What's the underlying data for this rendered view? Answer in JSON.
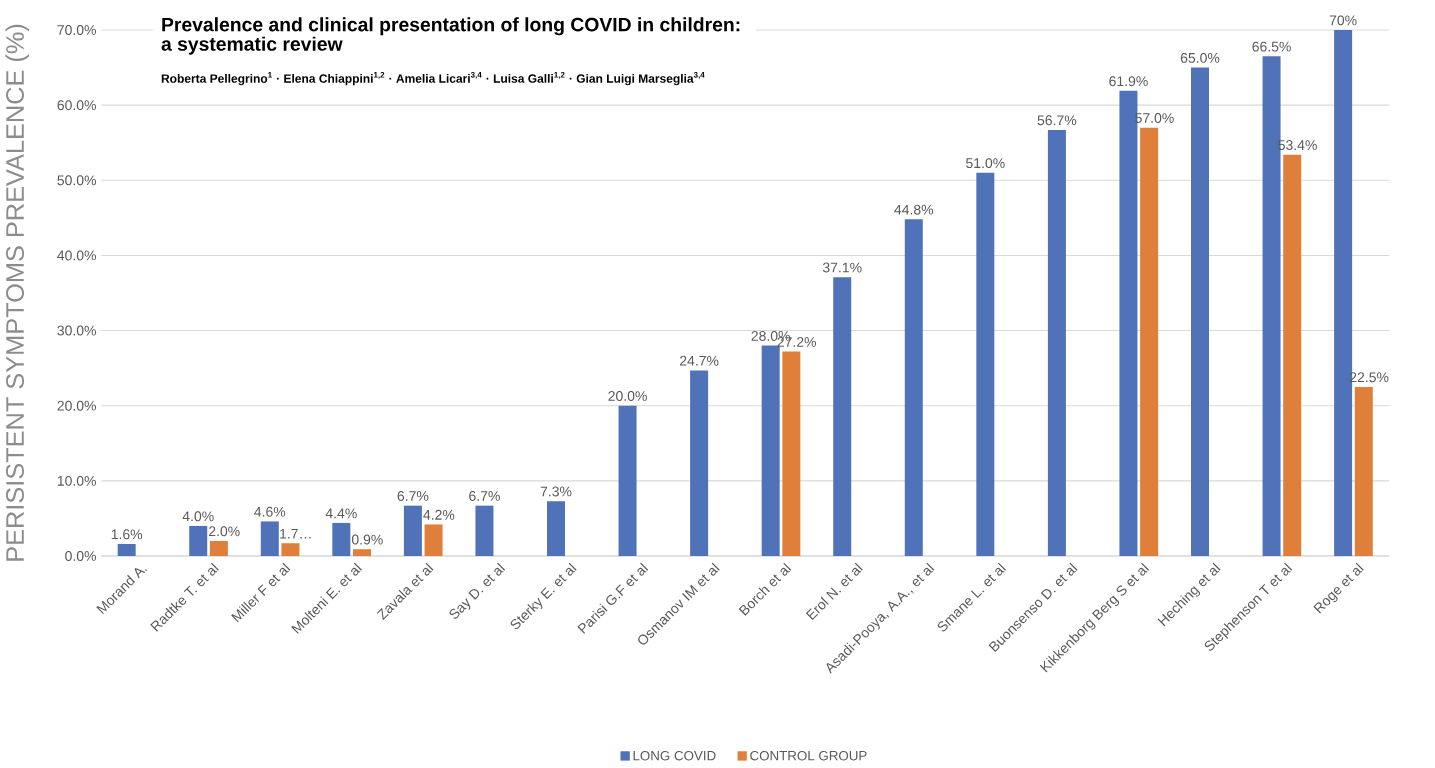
{
  "chart_data": {
    "type": "bar",
    "title": "Prevalence and clinical presentation of long COVID in children: a systematic review",
    "subtitle": "Roberta Pellegrino$^{1}$ · Elena Chiappini$^{1,2}$ · Amelia Licari$^{3,4}$ · Luisa Galli$^{1,2}$ · Gian Luigi Marseglia$^{3,4}$",
    "ylabel": "PERISISTENT SYMPTOMS  PREVALENCE (%)",
    "categories": [
      "Morand A.",
      "Radtke T. et al",
      "Miller F et al",
      "Molteni E. et al",
      "Zavala et al",
      "Say D. et al",
      "Sterky E. et al",
      "Parisi G.F et al",
      "Osmanov IM et al",
      "Borch et al",
      "Erol N. et al",
      "Asadi-Pooya, A.A., et al",
      "Smane L. et al",
      "Buonsenso D. et al",
      "Kikkenborg Berg S et al",
      "Heching et al",
      "Stephenson T et al",
      "Roge et al"
    ],
    "series": [
      {
        "name": "LONG COVID",
        "color": "#4f72b8",
        "values": [
          1.6,
          4.0,
          4.6,
          4.4,
          6.7,
          6.7,
          7.3,
          20.0,
          24.7,
          28.0,
          37.1,
          44.8,
          51.0,
          56.7,
          61.9,
          65.0,
          66.5,
          70
        ],
        "value_labels": [
          "1.6%",
          "4.0%",
          "4.6%",
          "4.4%",
          "6.7%",
          "6.7%",
          "7.3%",
          "20.0%",
          "24.7%",
          "28.0%",
          "37.1%",
          "44.8%",
          "51.0%",
          "56.7%",
          "61.9%",
          "65.0%",
          "66.5%",
          "70%"
        ]
      },
      {
        "name": "CONTROL GROUP",
        "color": "#e07f3a",
        "values": [
          null,
          2.0,
          1.7,
          0.9,
          4.2,
          null,
          null,
          null,
          null,
          27.2,
          null,
          null,
          null,
          null,
          57.0,
          null,
          53.4,
          22.5
        ],
        "value_labels": [
          null,
          "2.0%",
          "1.7…",
          "0.9%",
          "4.2%",
          null,
          null,
          null,
          null,
          "27.2%",
          null,
          null,
          null,
          null,
          "57.0%",
          null,
          "53.4%",
          "22.5%"
        ]
      }
    ],
    "ylim": [
      0,
      70
    ],
    "yticks": [
      {
        "value": 0,
        "label": "0.0%"
      },
      {
        "value": 10,
        "label": "10.0%"
      },
      {
        "value": 20,
        "label": "20.0%"
      },
      {
        "value": 30,
        "label": "30.0%"
      },
      {
        "value": 40,
        "label": "40.0%"
      },
      {
        "value": 50,
        "label": "50.0%"
      },
      {
        "value": 60,
        "label": "60.0%"
      },
      {
        "value": 70,
        "label": "70.0%"
      }
    ],
    "grid": "y",
    "legend": "bottom"
  }
}
